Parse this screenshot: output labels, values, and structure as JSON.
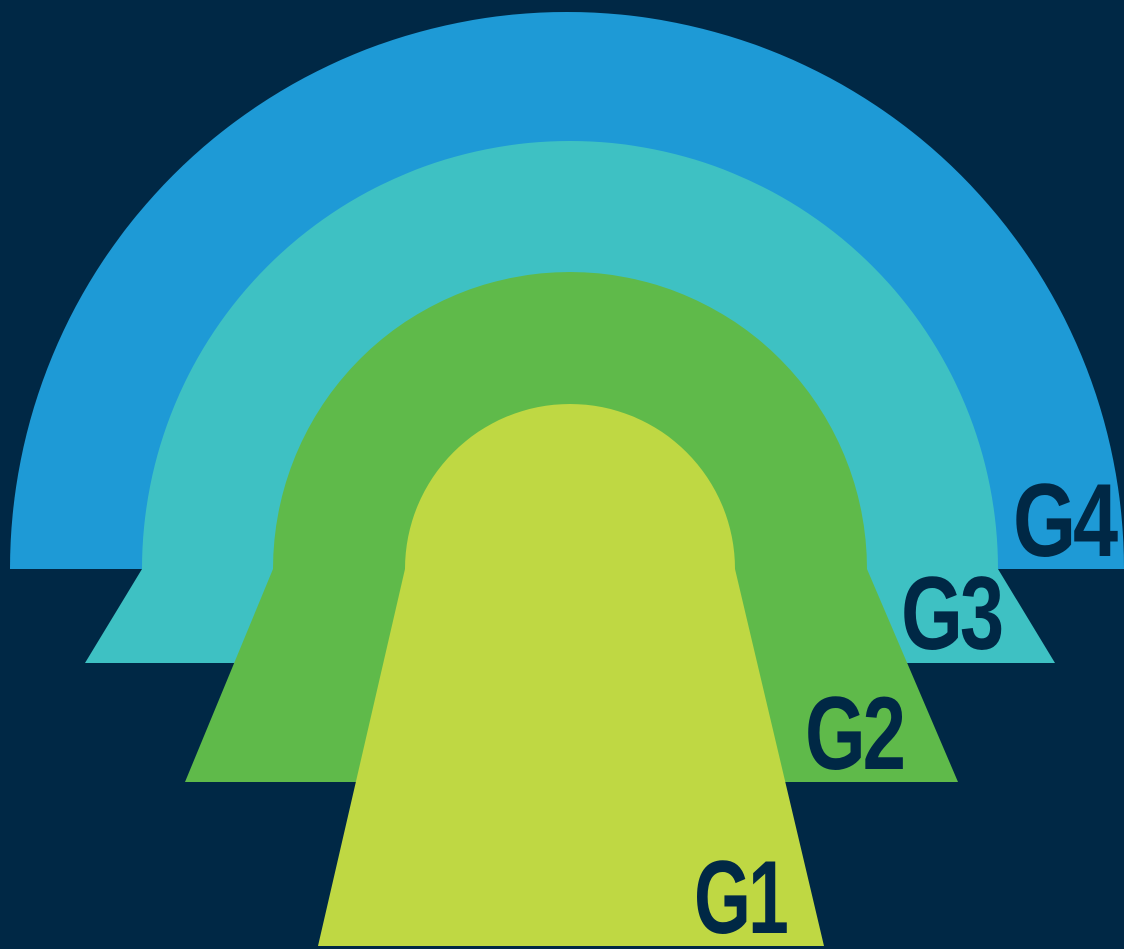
{
  "background_color": "#002845",
  "label_color": "#002845",
  "layers": [
    {
      "id": "g4",
      "label": "G4",
      "color": "#1e9ad6"
    },
    {
      "id": "g3",
      "label": "G3",
      "color": "#3ec1c3"
    },
    {
      "id": "g2",
      "label": "G2",
      "color": "#5fba4a"
    },
    {
      "id": "g1",
      "label": "G1",
      "color": "#bfd843"
    }
  ]
}
